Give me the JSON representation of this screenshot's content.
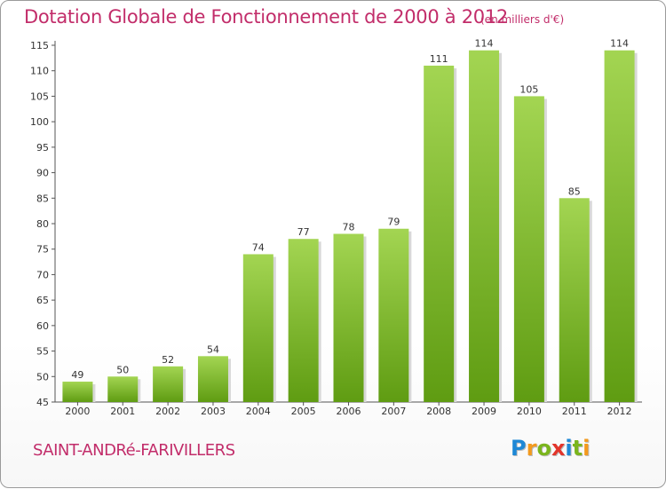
{
  "header": {
    "title": "Dotation Globale de Fonctionnement de 2000 à 2012",
    "unit": "(en milliers d'€)"
  },
  "footer": {
    "commune": "SAINT-ANDRé-FARIVILLERS",
    "logo_letters": [
      {
        "char": "P",
        "color": "#1e88d6"
      },
      {
        "char": "r",
        "color": "#f39a1e"
      },
      {
        "char": "o",
        "color": "#7ab51d"
      },
      {
        "char": "x",
        "color": "#e2352b"
      },
      {
        "char": "i",
        "color": "#1e88d6"
      },
      {
        "char": "t",
        "color": "#7ab51d"
      },
      {
        "char": "i",
        "color": "#f39a1e"
      }
    ]
  },
  "chart_data": {
    "type": "bar",
    "categories": [
      "2000",
      "2001",
      "2002",
      "2003",
      "2004",
      "2005",
      "2006",
      "2007",
      "2008",
      "2009",
      "2010",
      "2011",
      "2012"
    ],
    "values": [
      49,
      50,
      52,
      54,
      74,
      77,
      78,
      79,
      111,
      114,
      105,
      85,
      114
    ],
    "data_labels": [
      "49",
      "50",
      "52",
      "54",
      "74",
      "77",
      "78",
      "79",
      "111",
      "114",
      "105",
      "85",
      "114"
    ],
    "yticks": [
      "45",
      "50",
      "55",
      "60",
      "65",
      "70",
      "75",
      "80",
      "85",
      "90",
      "95",
      "100",
      "105",
      "110",
      "115"
    ],
    "ylim": [
      45,
      115
    ],
    "grid": false,
    "bar_color": "#7cbf2a"
  }
}
